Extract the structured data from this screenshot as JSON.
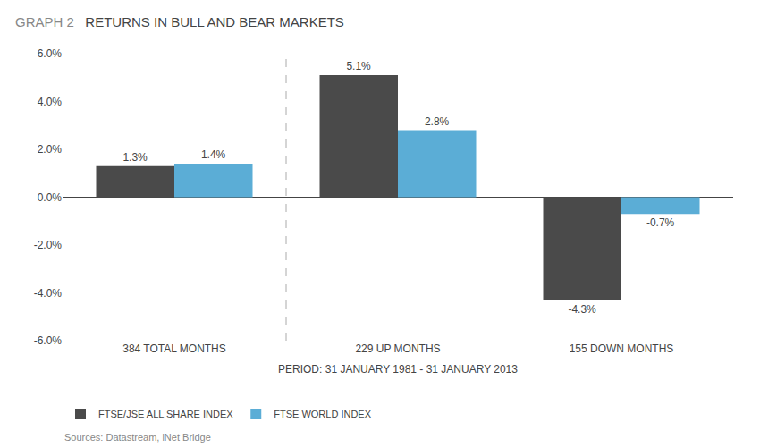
{
  "chart_data": {
    "type": "bar",
    "title": "RETURNS IN BULL AND BEAR MARKETS",
    "xlabel": "PERIOD: 31 JANUARY 1981 - 31 JANUARY 2013",
    "annotations": [
      "GRAPH 2",
      "Sources: Datastream, iNet Bridge"
    ],
    "categories": [
      "384 TOTAL MONTHS",
      "229 UP MONTHS",
      "155 DOWN MONTHS"
    ],
    "series": [
      {
        "name": "FTSE/JSE ALL SHARE INDEX",
        "color": "#4a4a4a",
        "values": [
          1.3,
          5.1,
          -4.3
        ],
        "value_labels": [
          "1.3%",
          "5.1%",
          "-4.3%"
        ]
      },
      {
        "name": "FTSE WORLD INDEX",
        "color": "#5badd6",
        "values": [
          1.4,
          2.8,
          -0.7
        ],
        "value_labels": [
          "1.4%",
          "2.8%",
          "-0.7%"
        ]
      }
    ],
    "ylim": [
      -6.0,
      6.0
    ],
    "yticks": [
      {
        "value": -6.0,
        "label": "-6.0%"
      },
      {
        "value": -4.0,
        "label": "-4.0%"
      },
      {
        "value": -2.0,
        "label": "-2.0%"
      },
      {
        "value": 0.0,
        "label": "0.0%"
      },
      {
        "value": 2.0,
        "label": "2.0%"
      },
      {
        "value": 4.0,
        "label": "4.0%"
      },
      {
        "value": 6.0,
        "label": "6.0%"
      }
    ],
    "grid": false,
    "legend": "lower left",
    "data_labels": true
  }
}
